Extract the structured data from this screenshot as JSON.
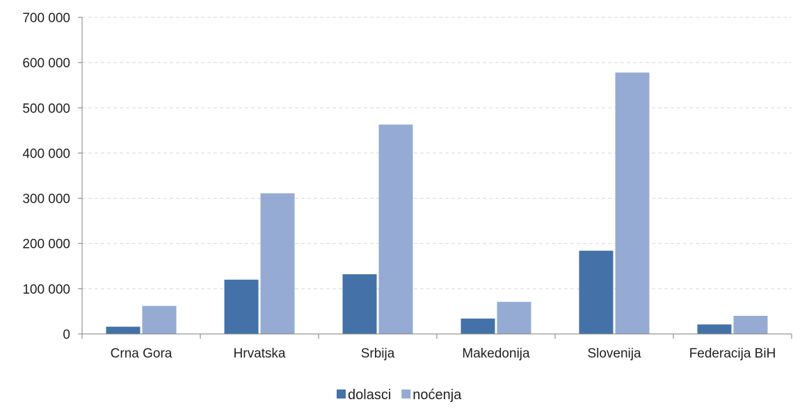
{
  "chart_data": {
    "type": "bar",
    "categories": [
      "Crna Gora",
      "Hrvatska",
      "Srbija",
      "Makedonija",
      "Slovenija",
      "Federacija BiH"
    ],
    "series": [
      {
        "name": "dolasci",
        "color": "#4472a8",
        "values": [
          16000,
          120000,
          132000,
          34000,
          184000,
          21000
        ]
      },
      {
        "name": "noćenja",
        "color": "#95abd3",
        "values": [
          62000,
          311000,
          463000,
          71000,
          578000,
          40000
        ]
      }
    ],
    "ylim": [
      0,
      700000
    ],
    "yticks": [
      0,
      100000,
      200000,
      300000,
      400000,
      500000,
      600000,
      700000
    ],
    "ytick_labels": [
      "0",
      "100 000",
      "200 000",
      "300 000",
      "400 000",
      "500 000",
      "600 000",
      "700 000"
    ],
    "grid": true,
    "legend_position": "bottom-center"
  }
}
